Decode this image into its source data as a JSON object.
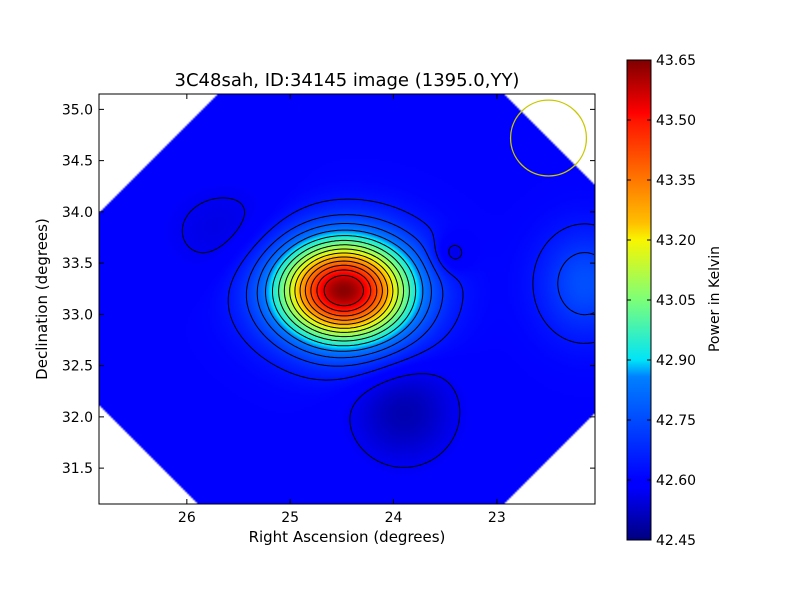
{
  "chart_data": {
    "type": "heatmap",
    "title": "3C48sah, ID:34145 image (1395.0,YY)",
    "xlabel": "Right Ascension (degrees)",
    "ylabel": "Declination (degrees)",
    "xlim": [
      26.85,
      22.05
    ],
    "ylim": [
      31.15,
      35.15
    ],
    "x_axis_reversed": true,
    "x_ticks": [
      "26",
      "25",
      "24",
      "23"
    ],
    "y_ticks": [
      "31.5",
      "32.0",
      "32.5",
      "33.0",
      "33.5",
      "34.0",
      "34.5",
      "35.0"
    ],
    "colormap": "jet",
    "colorbar": {
      "label": "Power in Kelvin",
      "range": [
        42.45,
        43.65
      ],
      "ticks": [
        "42.45",
        "42.60",
        "42.75",
        "42.90",
        "43.05",
        "43.20",
        "43.35",
        "43.50",
        "43.65"
      ]
    },
    "background_level": 42.6,
    "peak": {
      "ra": 24.45,
      "dec": 33.22,
      "value": 43.63
    },
    "secondary_sources": [
      {
        "ra": 23.45,
        "dec": 33.58,
        "value": 42.52
      },
      {
        "ra": 22.15,
        "dec": 33.3,
        "value": 42.76
      }
    ],
    "depressions": [
      {
        "ra": 23.9,
        "dec": 32.05,
        "value": 42.5
      },
      {
        "ra": 25.6,
        "dec": 33.8,
        "value": 42.55
      }
    ],
    "marker_circle": {
      "ra": 22.5,
      "dec": 34.72,
      "radius_deg": 0.37,
      "color": "#c8c800"
    }
  }
}
